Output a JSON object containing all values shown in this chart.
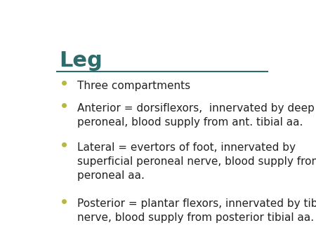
{
  "title": "Leg",
  "title_color": "#2E6B6B",
  "title_fontsize": 22,
  "title_bold": true,
  "underline_color": "#2E6B6B",
  "bullet_color": "#B8B840",
  "bullet_items": [
    "Three compartments",
    "Anterior = dorsiflexors,  innervated by deep\nperoneal, blood supply from ant. tibial aa.",
    "Lateral = evertors of foot, innervated by\nsuperficial peroneal nerve, blood supply from\nperoneal aa.",
    "Posterior = plantar flexors, innervated by tibial\nnerve, blood supply from posterior tibial aa."
  ],
  "text_color": "#222222",
  "text_fontsize": 11,
  "bg_color": "#FFFFFF",
  "border_color": "#4A9090",
  "fig_width": 4.5,
  "fig_height": 3.38,
  "dpi": 100
}
